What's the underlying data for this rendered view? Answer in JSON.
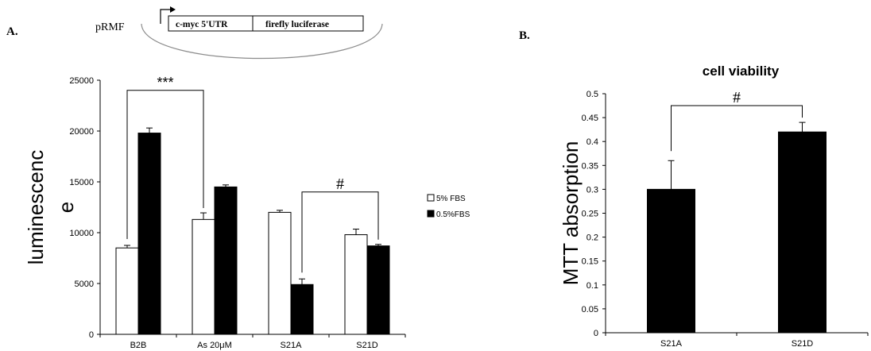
{
  "panel_a": {
    "letter": "A.",
    "plasmid": {
      "name": "pRMF",
      "segments": [
        "c-myc 5'UTR",
        "firefly luciferase"
      ]
    }
  },
  "panel_b": {
    "letter": "B."
  },
  "colors": {
    "ink": "#000000",
    "bar_white": "#ffffff",
    "bar_black": "#000000",
    "plasmid_gray": "#8c8c8c"
  },
  "chart_data": [
    {
      "type": "bar",
      "title": "",
      "xlabel": "",
      "ylabel": "luminescence",
      "ylim": [
        0,
        25000
      ],
      "yticks": [
        0,
        5000,
        10000,
        15000,
        20000,
        25000
      ],
      "grid": false,
      "legend_position": "right",
      "categories": [
        "B2B",
        "As 20μM",
        "S21A",
        "S21D"
      ],
      "series": [
        {
          "name": "5% FBS",
          "fill": "white",
          "values": [
            8500,
            11300,
            12000,
            9800
          ],
          "errors": [
            250,
            650,
            200,
            550
          ]
        },
        {
          "name": "0.5%FBS",
          "fill": "black",
          "values": [
            19800,
            14500,
            4900,
            8700
          ],
          "errors": [
            500,
            200,
            550,
            150
          ]
        }
      ],
      "annotations": [
        {
          "label": "***",
          "from": "B2B",
          "to": "As 20μM"
        },
        {
          "label": "#",
          "from": "S21A",
          "to": "S21D"
        }
      ]
    },
    {
      "type": "bar",
      "title": "cell viability",
      "xlabel": "",
      "ylabel": "MTT absorption",
      "ylim": [
        0,
        0.5
      ],
      "yticks": [
        0,
        0.05,
        0.1,
        0.15,
        0.2,
        0.25,
        0.3,
        0.35,
        0.4,
        0.45,
        0.5
      ],
      "grid": false,
      "categories": [
        "S21A",
        "S21D"
      ],
      "values": [
        0.3,
        0.42
      ],
      "errors": [
        0.06,
        0.02
      ],
      "annotations": [
        {
          "label": "#",
          "from": "S21A",
          "to": "S21D"
        }
      ]
    }
  ]
}
